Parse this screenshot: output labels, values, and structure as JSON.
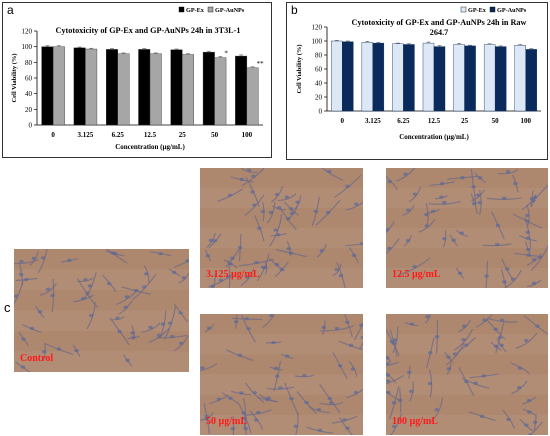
{
  "panels": {
    "a": {
      "letter": "a",
      "chart_data": {
        "type": "bar",
        "title": "Cytotoxicity of GP-Ex and GP-AuNPs 24h in 3T3L-1",
        "xlabel": "Concentration (µg/mL)",
        "ylabel": "Cell Viability (%)",
        "categories": [
          "0",
          "3.125",
          "6.25",
          "12.5",
          "25",
          "50",
          "100"
        ],
        "ylim": [
          0,
          120
        ],
        "yticks": [
          0,
          20,
          40,
          60,
          80,
          100,
          120
        ],
        "series": [
          {
            "name": "GP-Ex",
            "values": [
              100,
              98.5,
              96.5,
              96.5,
              96,
              93,
              88
            ],
            "errors": [
              1.2,
              1,
              1,
              1,
              1,
              1.2,
              1.5
            ],
            "color": "#000000"
          },
          {
            "name": "GP-AuNPs",
            "values": [
              100,
              97,
              91,
              91,
              90,
              86,
              73
            ],
            "errors": [
              1.2,
              1,
              1,
              1,
              1,
              1.2,
              1.2
            ],
            "color": "#a6a6a6"
          }
        ],
        "annotations": [
          {
            "category": "50",
            "series": "GP-AuNPs",
            "text": "*"
          },
          {
            "category": "100",
            "series": "GP-AuNPs",
            "text": "**"
          }
        ],
        "legend": "top-right",
        "grid": false
      }
    },
    "b": {
      "letter": "b",
      "chart_data": {
        "type": "bar",
        "title": "Cytotoxicity of GP-Ex and GP-AuNPs 24h in Raw 264.7",
        "title_lines": [
          "Cytotoxicity of GP-Ex and GP-AuNPs 24h in Raw",
          "264.7"
        ],
        "xlabel": "Concentration (µg/mL)",
        "ylabel": "Cell Viability (%)",
        "categories": [
          "0",
          "3.125",
          "6.25",
          "12.5",
          "25",
          "50",
          "100"
        ],
        "ylim": [
          0,
          120
        ],
        "yticks": [
          0,
          20,
          40,
          60,
          80,
          100,
          120
        ],
        "series": [
          {
            "name": "GP-Ex",
            "values": [
              100,
              98,
              96,
              97,
              95,
              95,
              94
            ],
            "errors": [
              1,
              1.5,
              1,
              1.5,
              1.5,
              1,
              1
            ],
            "color": "#dde8f6"
          },
          {
            "name": "GP-AuNPs",
            "values": [
              99,
              97,
              95,
              92,
              93,
              92,
              88
            ],
            "errors": [
              1,
              1,
              1,
              1.5,
              1,
              1,
              1
            ],
            "color": "#0b2a5c"
          }
        ],
        "annotations": [],
        "legend": "top-right",
        "grid": false
      }
    },
    "c": {
      "letter": "c",
      "images": [
        {
          "label": "Control"
        },
        {
          "label": "3.125 µg/mL"
        },
        {
          "label": "12.5 µg/mL"
        },
        {
          "label": "50 µg/mL"
        },
        {
          "label": "100 µg/mL"
        }
      ]
    }
  }
}
